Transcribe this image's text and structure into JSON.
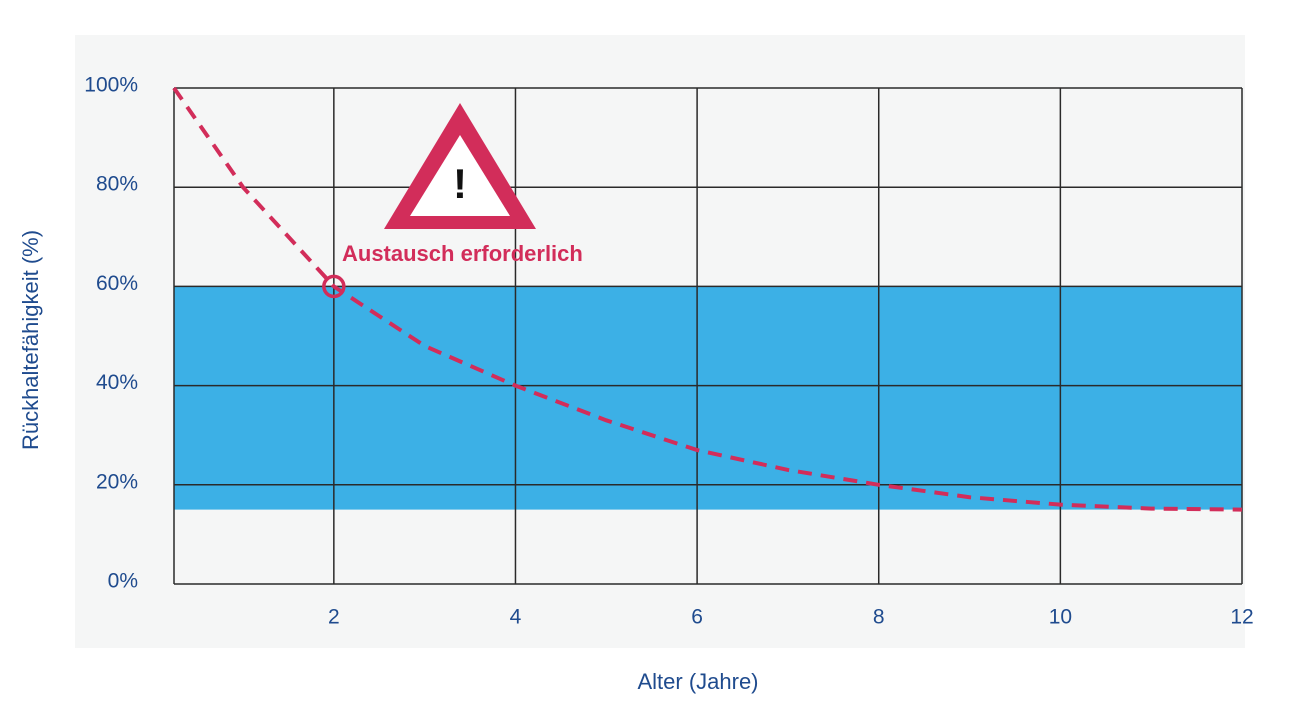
{
  "chart_data": {
    "type": "line",
    "x_label": "Alter (Jahre)",
    "y_label": "Rückhaltefähigkeit (%)",
    "x": [
      0.24,
      1,
      2,
      3,
      4,
      5,
      6,
      7,
      8,
      9,
      10,
      11,
      12
    ],
    "series": [
      {
        "color": "#d22d5a",
        "values": [
          100,
          80,
          60,
          48,
          40,
          33,
          27,
          23,
          20,
          17.5,
          16,
          15.2,
          15
        ]
      }
    ],
    "band": {
      "range": [
        15,
        60
      ],
      "color": "#3cb0e6"
    },
    "marker": {
      "x": 2,
      "y": 60
    },
    "annotation": "Austausch erforderlich",
    "warning_symbol": "!",
    "xlim": [
      0.24,
      12
    ],
    "ylim": [
      0,
      100
    ],
    "xticks": [
      2,
      4,
      6,
      8,
      10,
      12
    ],
    "yticks": [
      {
        "value": 0,
        "label": "0%"
      },
      {
        "value": 20,
        "label": "20%"
      },
      {
        "value": 40,
        "label": "40%"
      },
      {
        "value": 60,
        "label": "60%"
      },
      {
        "value": 80,
        "label": "80%"
      },
      {
        "value": 100,
        "label": "100%"
      }
    ],
    "grid": true
  }
}
